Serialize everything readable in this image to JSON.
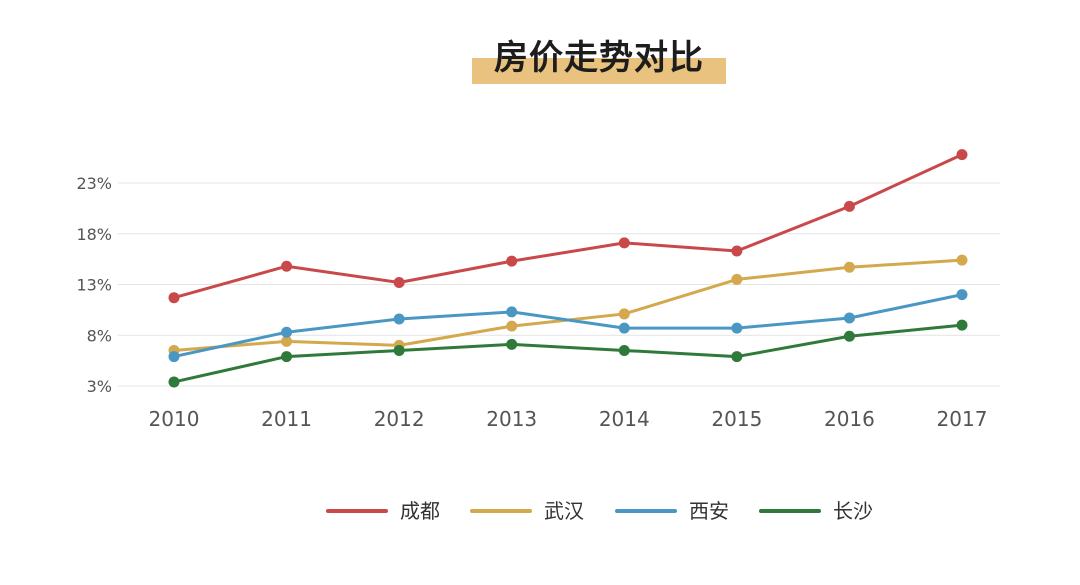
{
  "colors": {
    "title_highlight": "#e8c27e",
    "grid": "#e4e4e4"
  },
  "chart_data": {
    "type": "line",
    "title": "房价走势对比",
    "xlabel": "",
    "ylabel": "",
    "x": [
      "2010",
      "2011",
      "2012",
      "2013",
      "2014",
      "2015",
      "2016",
      "2017"
    ],
    "yticks": [
      "3%",
      "8%",
      "13%",
      "18%",
      "23%"
    ],
    "ylim": [
      3,
      23
    ],
    "grid": true,
    "legend_position": "bottom",
    "series": [
      {
        "name": "成都",
        "color": "#c9494a",
        "values": [
          11.7,
          14.8,
          13.2,
          15.3,
          17.1,
          16.3,
          20.7,
          25.8
        ]
      },
      {
        "name": "武汉",
        "color": "#d4a84d",
        "values": [
          6.5,
          7.4,
          7.0,
          8.9,
          10.1,
          13.5,
          14.7,
          15.4
        ]
      },
      {
        "name": "西安",
        "color": "#4a97c4",
        "values": [
          5.9,
          8.3,
          9.6,
          10.3,
          8.7,
          8.7,
          9.7,
          12.0
        ]
      },
      {
        "name": "长沙",
        "color": "#2f7a3a",
        "values": [
          3.4,
          5.9,
          6.5,
          7.1,
          6.5,
          5.9,
          7.9,
          9.0
        ]
      }
    ]
  }
}
